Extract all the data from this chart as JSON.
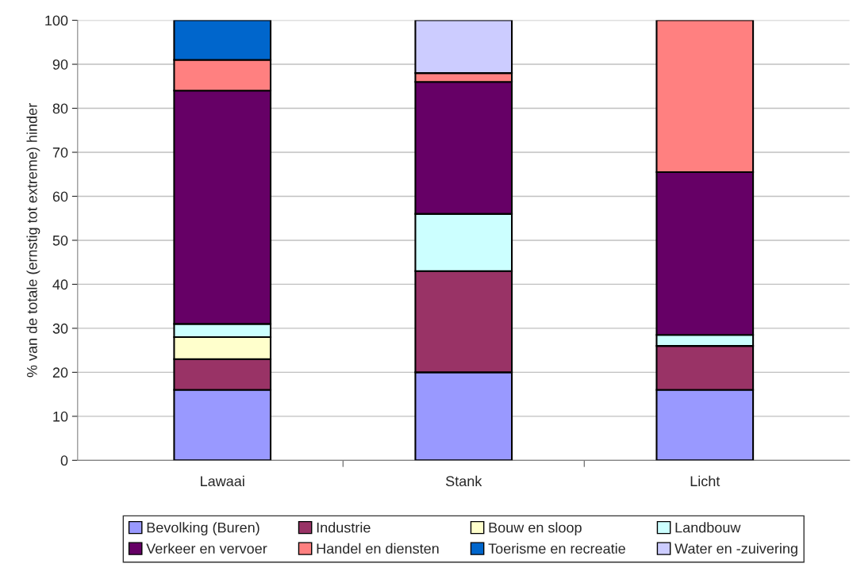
{
  "chart_data": {
    "type": "bar",
    "stacked": true,
    "ylabel": "% van de totale (ernstig tot extreme) hinder",
    "categories": [
      "Lawaai",
      "Stank",
      "Licht"
    ],
    "series": [
      {
        "name": "Bevolking (Buren)",
        "color": "#9999ff",
        "values": [
          16,
          20,
          16
        ]
      },
      {
        "name": "Industrie",
        "color": "#993366",
        "values": [
          7,
          23,
          10
        ]
      },
      {
        "name": "Bouw en sloop",
        "color": "#ffffcc",
        "values": [
          5,
          null,
          null
        ]
      },
      {
        "name": "Landbouw",
        "color": "#ccffff",
        "values": [
          3,
          13,
          2.5
        ]
      },
      {
        "name": "Verkeer en vervoer",
        "color": "#660066",
        "values": [
          53,
          30,
          37
        ]
      },
      {
        "name": "Handel en diensten",
        "color": "#ff8080",
        "values": [
          7,
          2,
          34.5
        ]
      },
      {
        "name": "Toerisme en recreatie",
        "color": "#0066cc",
        "values": [
          9,
          null,
          null
        ]
      },
      {
        "name": "Water en -zuivering",
        "color": "#ccccff",
        "values": [
          null,
          12,
          null
        ]
      }
    ],
    "ylim": [
      0,
      100
    ],
    "yticks": [
      0,
      10,
      20,
      30,
      40,
      50,
      60,
      70,
      80,
      90,
      100
    ],
    "grid": "y",
    "legend": "bottom"
  }
}
